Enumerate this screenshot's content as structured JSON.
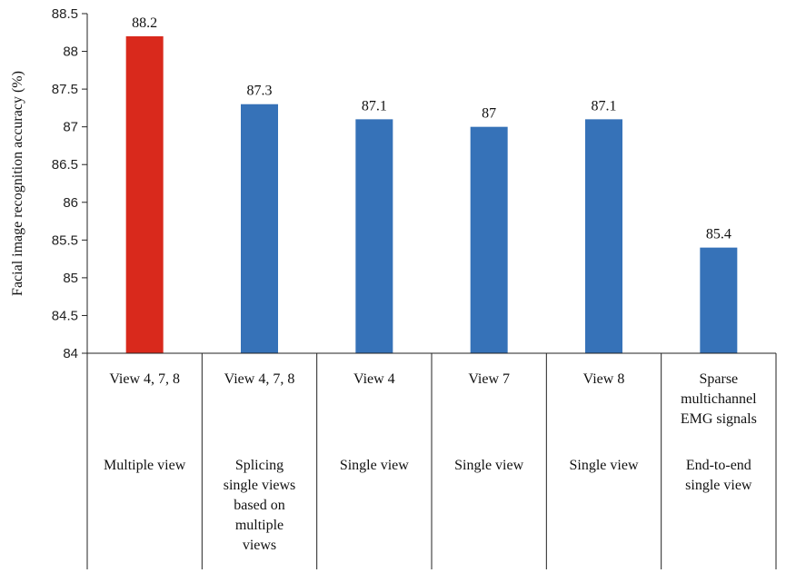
{
  "chart_data": {
    "type": "bar",
    "title": "",
    "xlabel": "",
    "ylabel": "Facial image recognition accuracy (%)",
    "ylim": [
      84,
      88.5
    ],
    "yticks": [
      "84",
      "84.5",
      "85",
      "85.5",
      "86",
      "86.5",
      "87",
      "87.5",
      "88",
      "88.5"
    ],
    "ytick_values": [
      84,
      84.5,
      85,
      85.5,
      86,
      86.5,
      87,
      87.5,
      88,
      88.5
    ],
    "categories": [
      [
        "View 4, 7, 8"
      ],
      [
        "View 4, 7, 8"
      ],
      [
        "View 4"
      ],
      [
        "View 7"
      ],
      [
        "View 8"
      ],
      [
        "Sparse",
        "multichannel",
        "EMG signals"
      ]
    ],
    "groups": [
      [
        "Multiple view"
      ],
      [
        "Splicing",
        "single views",
        "based on",
        "multiple",
        "views"
      ],
      [
        "Single view"
      ],
      [
        "Single view"
      ],
      [
        "Single view"
      ],
      [
        "End-to-end",
        "single view"
      ]
    ],
    "values": [
      88.2,
      87.3,
      87.1,
      87,
      87.1,
      85.4
    ],
    "value_labels": [
      "88.2",
      "87.3",
      "87.1",
      "87",
      "87.1",
      "85.4"
    ],
    "colors": [
      "#d9291c",
      "#3672b8",
      "#3672b8",
      "#3672b8",
      "#3672b8",
      "#3672b8"
    ],
    "grid": false,
    "legend": "none"
  }
}
